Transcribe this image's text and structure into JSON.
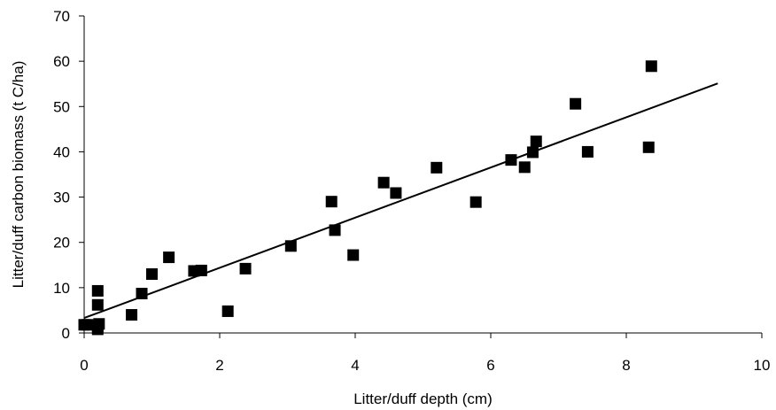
{
  "chart_data": {
    "type": "scatter",
    "title": "",
    "xlabel": "Litter/duff depth (cm)",
    "ylabel": "Litter/duff carbon biomass (t C/ha)",
    "xlim": [
      0,
      10
    ],
    "ylim": [
      0,
      70
    ],
    "xticks": [
      0,
      2,
      4,
      6,
      8,
      10
    ],
    "yticks": [
      0,
      10,
      20,
      30,
      40,
      50,
      60,
      70
    ],
    "grid": false,
    "legend": "none",
    "marker": "square",
    "marker_color": "#000000",
    "series": [
      {
        "points": [
          [
            0.0,
            1.8
          ],
          [
            0.05,
            1.8
          ],
          [
            0.2,
            1.5
          ],
          [
            0.22,
            2.0
          ],
          [
            0.2,
            0.8
          ],
          [
            0.2,
            9.3
          ],
          [
            0.2,
            6.2
          ],
          [
            0.7,
            4.0
          ],
          [
            0.85,
            8.7
          ],
          [
            1.0,
            13.0
          ],
          [
            1.25,
            16.7
          ],
          [
            1.62,
            13.7
          ],
          [
            1.73,
            13.8
          ],
          [
            2.12,
            4.8
          ],
          [
            2.38,
            14.2
          ],
          [
            3.05,
            19.2
          ],
          [
            3.65,
            29.0
          ],
          [
            3.7,
            22.7
          ],
          [
            3.97,
            17.2
          ],
          [
            4.42,
            33.2
          ],
          [
            4.6,
            30.9
          ],
          [
            5.2,
            36.5
          ],
          [
            5.78,
            28.9
          ],
          [
            6.3,
            38.2
          ],
          [
            6.5,
            36.6
          ],
          [
            6.62,
            39.9
          ],
          [
            6.67,
            42.3
          ],
          [
            7.25,
            50.6
          ],
          [
            7.43,
            40.0
          ],
          [
            8.33,
            41.0
          ],
          [
            8.37,
            58.9
          ]
        ]
      }
    ],
    "trendline": {
      "type": "linear",
      "x": [
        0,
        9.35
      ],
      "y": [
        3.3,
        55.1
      ]
    }
  }
}
